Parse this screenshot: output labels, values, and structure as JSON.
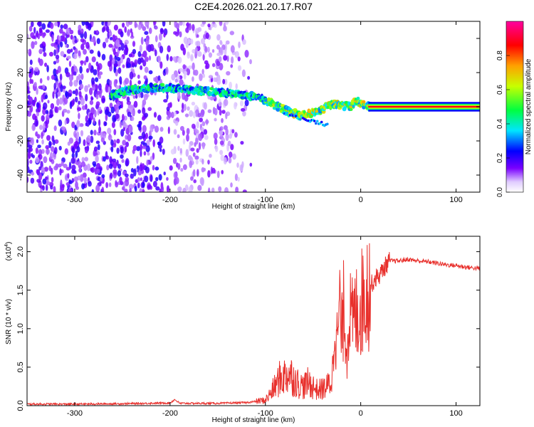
{
  "title": "C2E4.2026.021.20.17.R07",
  "chart_data": [
    {
      "type": "heatmap",
      "xlabel": "Height of straight line (km)",
      "ylabel": "Frequency (Hz)",
      "xlim": [
        -350,
        125
      ],
      "ylim": [
        -50,
        50
      ],
      "xticks": [
        -300,
        -200,
        -100,
        0,
        100
      ],
      "yticks": [
        -40,
        -20,
        0,
        20,
        40
      ],
      "colorbar": {
        "label": "Normalized spectral amplitude",
        "ticks": [
          "0.0",
          "0.2",
          "0.4",
          "0.6",
          "0.8"
        ],
        "tick_values": [
          0.0,
          0.2,
          0.4,
          0.6,
          0.8
        ],
        "range": [
          0,
          1
        ],
        "colors": [
          "#ffffff",
          "#6a00ff",
          "#0000ff",
          "#00ffff",
          "#00ff00",
          "#ffff00",
          "#ff8000",
          "#ff0040",
          "#ff00a0"
        ]
      },
      "ridge_x": [
        -260,
        -240,
        -220,
        -200,
        -180,
        -160,
        -140,
        -120,
        -105,
        -90,
        -75,
        -60,
        -45,
        -30,
        -20,
        -10,
        -5,
        0,
        10,
        125
      ],
      "ridge_y": [
        7,
        10,
        11,
        11,
        10,
        9,
        8,
        7,
        5,
        1,
        -3,
        -5,
        -3,
        2,
        1,
        0,
        4,
        2,
        0,
        0
      ]
    },
    {
      "type": "line",
      "xlabel": "Height of straight line (km)",
      "ylabel": "SNR (10 * v/v)",
      "scale_label": "(x10",
      "scale_exp": "4",
      "scale_close": ")",
      "xlim": [
        -350,
        125
      ],
      "ylim": [
        0,
        22000
      ],
      "xticks": [
        -300,
        -200,
        -100,
        0,
        100
      ],
      "yticks": [
        "0.0",
        "0.5",
        "1.0",
        "1.5",
        "2.0"
      ],
      "ytick_values": [
        0,
        5000,
        10000,
        15000,
        20000
      ],
      "color": "#e8302c",
      "series": [
        {
          "name": "SNR",
          "x": [
            -350,
            -300,
            -250,
            -200,
            -195,
            -190,
            -150,
            -120,
            -100,
            -95,
            -90,
            -85,
            -80,
            -75,
            -70,
            -65,
            -60,
            -55,
            -50,
            -45,
            -40,
            -35,
            -30,
            -27,
            -25,
            -22,
            -20,
            -17,
            -15,
            -12,
            -10,
            -5,
            0,
            5,
            10,
            15,
            20,
            25,
            30,
            40,
            50,
            60,
            70,
            80,
            90,
            100,
            110,
            125
          ],
          "y": [
            200,
            200,
            250,
            350,
            800,
            300,
            300,
            400,
            700,
            1500,
            2500,
            3500,
            3800,
            4200,
            3500,
            2800,
            2500,
            3000,
            2500,
            2000,
            2200,
            2500,
            3500,
            12000,
            8000,
            13000,
            9000,
            14000,
            6000,
            13000,
            10500,
            12000,
            13000,
            15000,
            15500,
            16500,
            17000,
            18000,
            18800,
            18800,
            19000,
            18800,
            18700,
            18500,
            18300,
            18200,
            18000,
            17800
          ]
        }
      ]
    }
  ]
}
